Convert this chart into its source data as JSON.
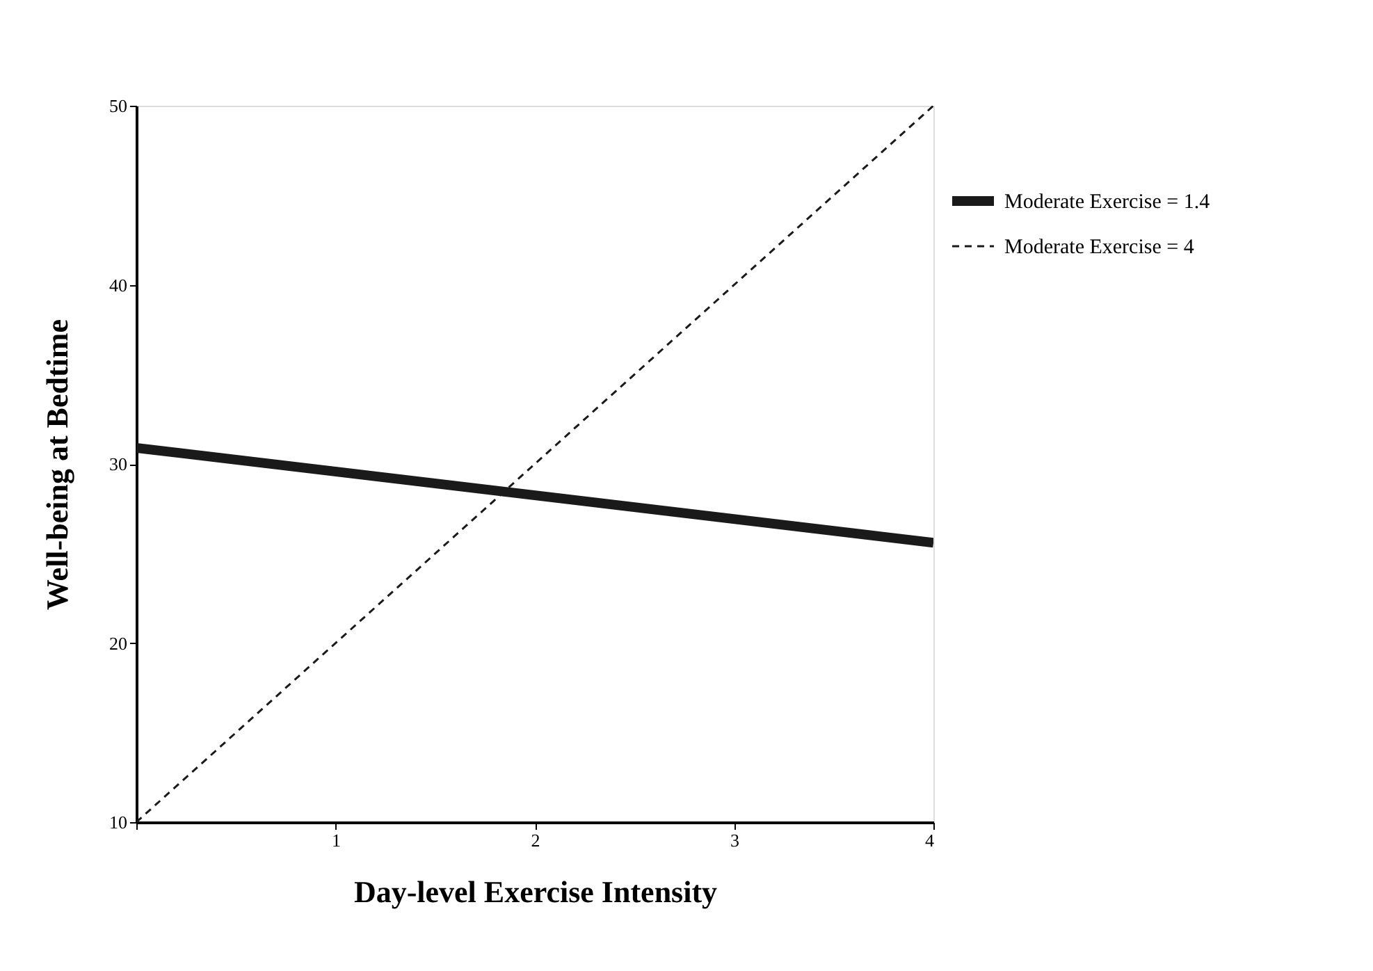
{
  "chart_data": {
    "type": "line",
    "xlabel": "Day-level Exercise Intensity",
    "ylabel": "Well-being at Bedtime",
    "x": [
      0,
      4
    ],
    "series": [
      {
        "name": "Moderate Exercise = 1.4",
        "color": "#1a1a1a",
        "values": [
          30.9,
          25.6
        ],
        "line_style": "solid"
      },
      {
        "name": "Moderate Exercise = 4",
        "color": "#1a1a1a",
        "values": [
          10,
          50
        ],
        "line_style": "dashed"
      }
    ],
    "xlim": [
      0,
      4
    ],
    "xticks": [
      {
        "value": 0,
        "label": null
      },
      1,
      2,
      3,
      4
    ],
    "ylim": [
      10,
      50
    ],
    "yticks": [
      10,
      20,
      30,
      40,
      50
    ],
    "grid": false,
    "legend": "top right",
    "marker": "none"
  }
}
